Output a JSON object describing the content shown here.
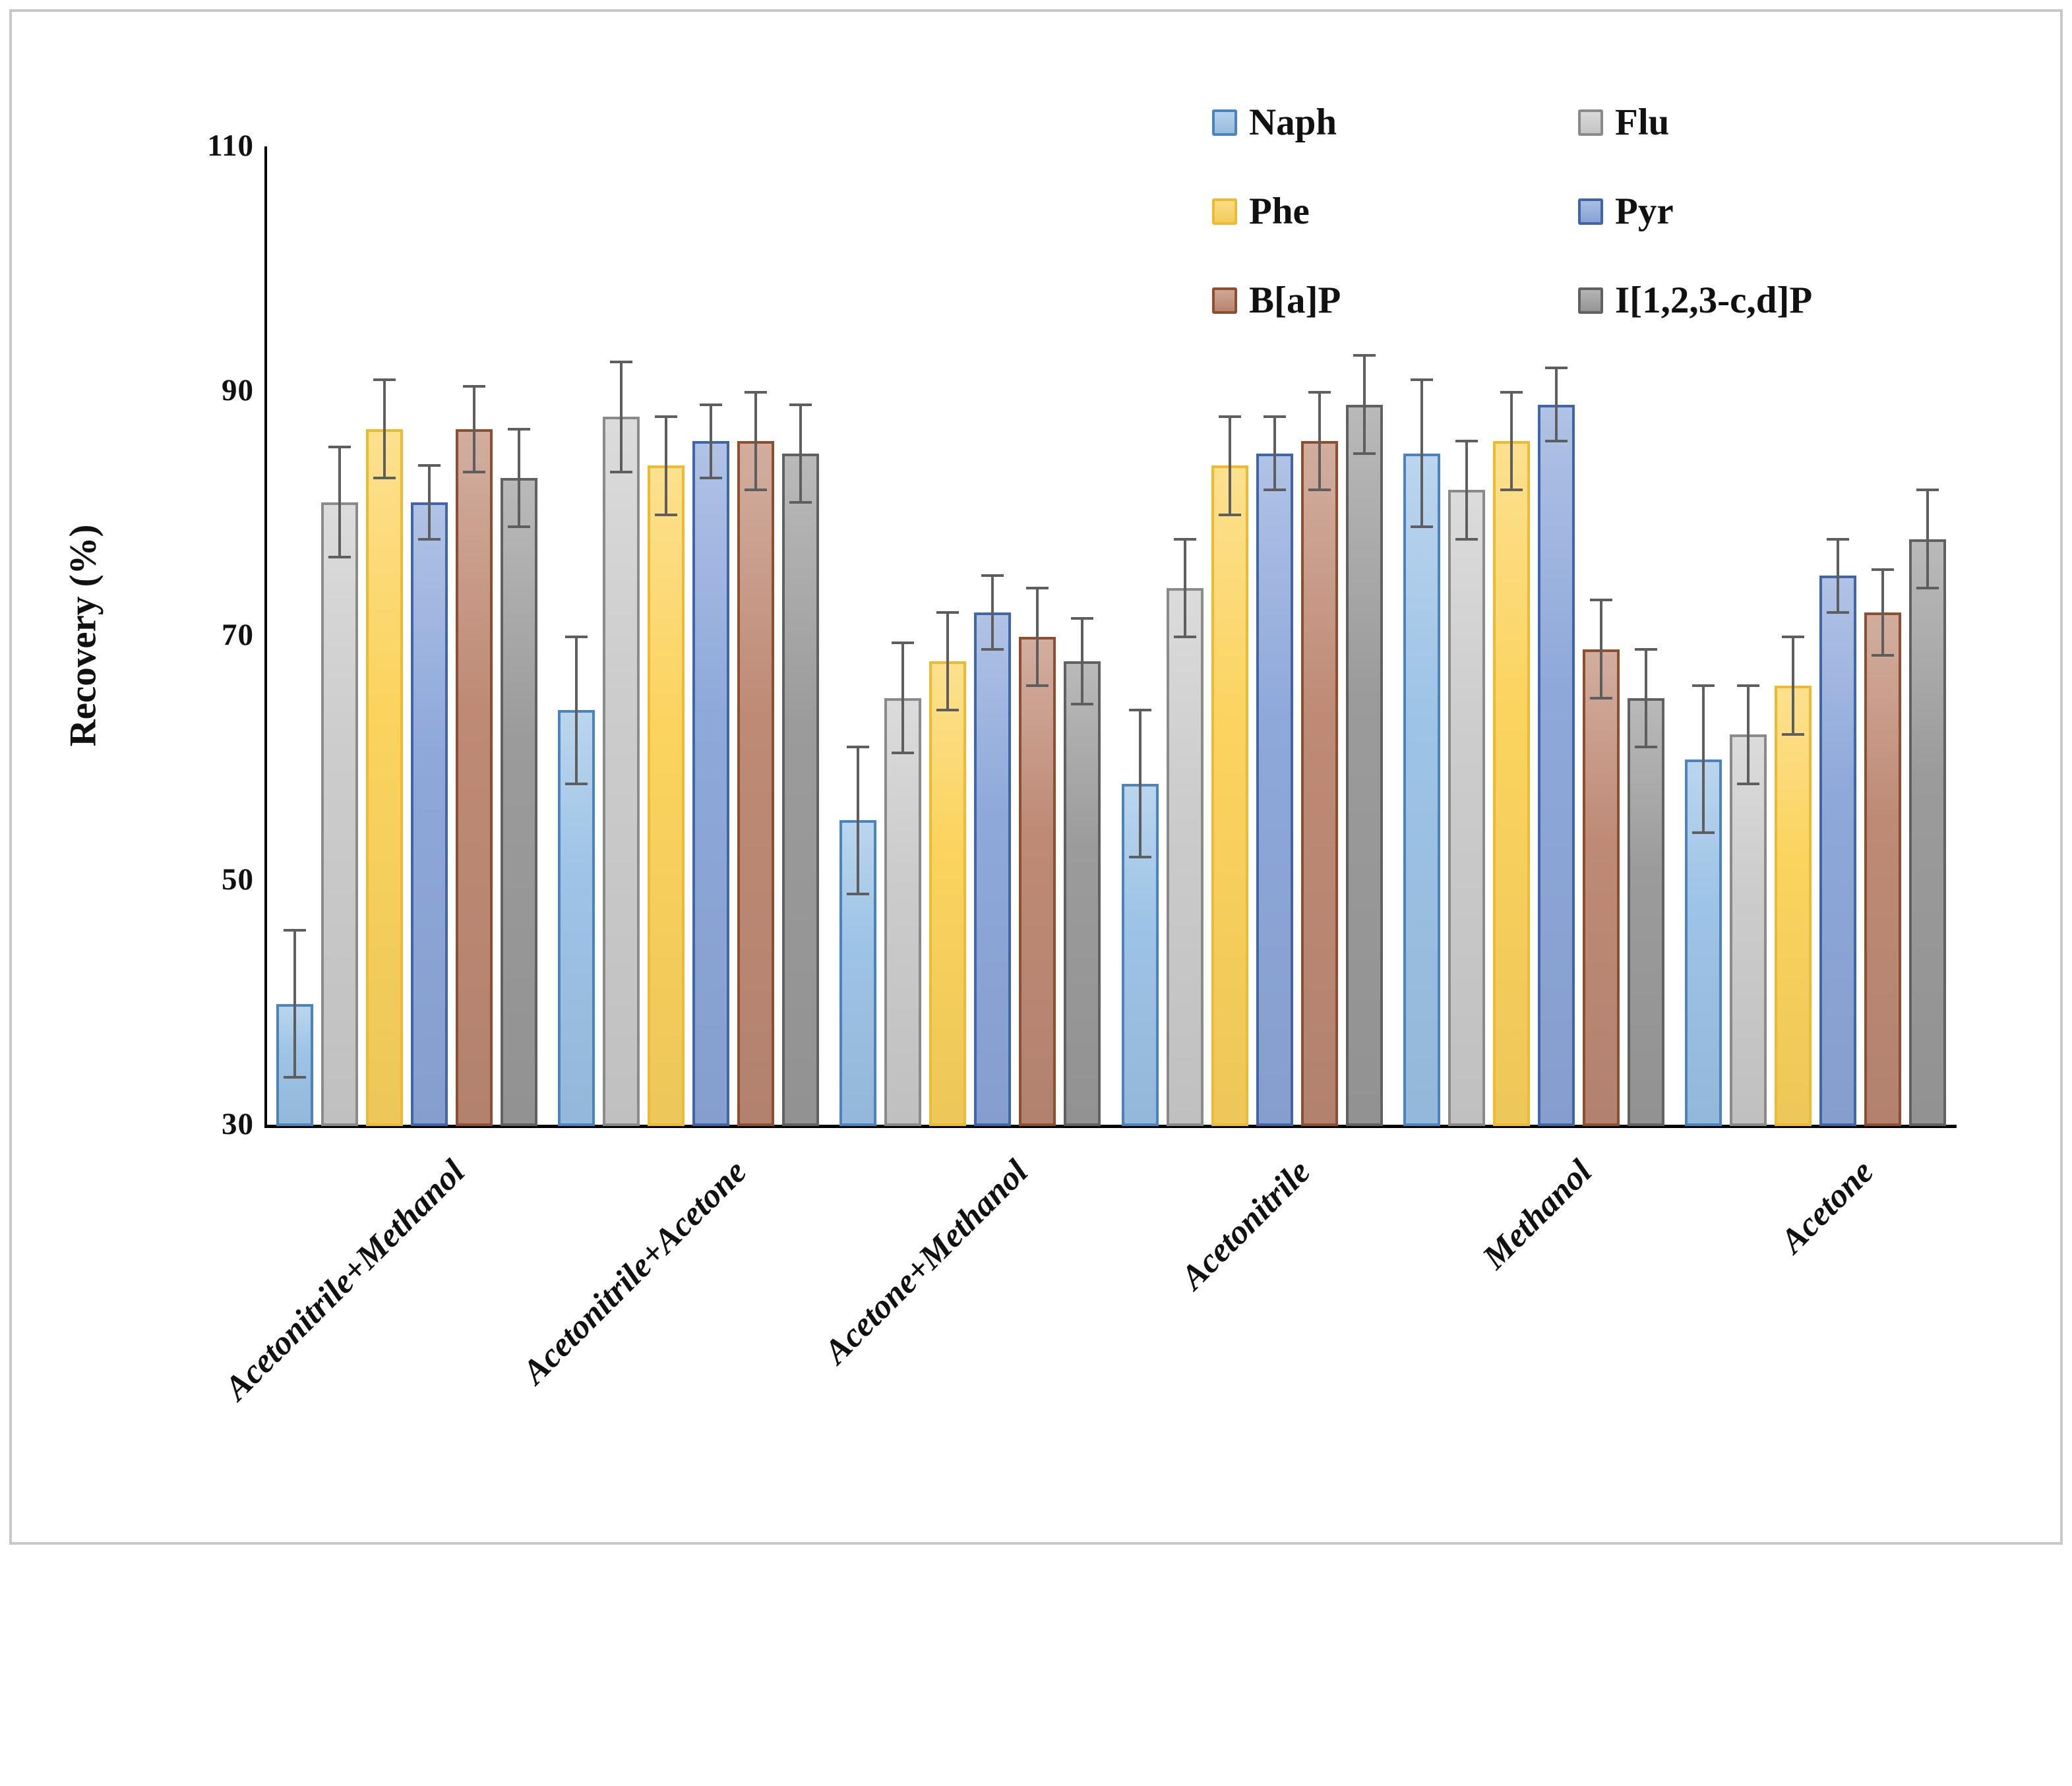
{
  "chart_data": {
    "type": "bar",
    "title": "",
    "xlabel": "",
    "ylabel": "Recovery (%)",
    "ylim": [
      30,
      110
    ],
    "yticks": [
      110,
      90,
      70,
      50,
      30
    ],
    "grid": false,
    "legend_position": "top-right",
    "categories": [
      "Acetonitrile+Methanol",
      "Acetonitrile+Acetone",
      "Acetone+Methanol",
      "Acetonitrile",
      "Methanol",
      "Acetone"
    ],
    "series": [
      {
        "name": "Naph",
        "fill": "#9DC3E6",
        "border": "#4B83BF",
        "values": [
          40,
          64,
          55,
          58,
          85,
          60
        ],
        "errors": [
          6,
          6,
          6,
          6,
          6,
          6
        ]
      },
      {
        "name": "Flu",
        "fill": "#CCCCCC",
        "border": "#8A8A8A",
        "values": [
          81,
          88,
          65,
          74,
          82,
          62
        ],
        "errors": [
          4.5,
          4.5,
          4.5,
          4,
          4,
          4
        ]
      },
      {
        "name": "Phe",
        "fill": "#FBD35E",
        "border": "#EDBA31",
        "values": [
          87,
          84,
          68,
          84,
          86,
          66
        ],
        "errors": [
          4,
          4,
          4,
          4,
          4,
          4
        ]
      },
      {
        "name": "Pyr",
        "fill": "#8EA8DA",
        "border": "#3E66A9",
        "values": [
          81,
          86,
          72,
          85,
          89,
          75
        ],
        "errors": [
          3,
          3,
          3,
          3,
          3,
          3
        ]
      },
      {
        "name": "B[a]P",
        "fill": "#BE8A75",
        "border": "#8F4F2E",
        "values": [
          87,
          86,
          70,
          86,
          69,
          72
        ],
        "errors": [
          3.5,
          4,
          4,
          4,
          4,
          3.5
        ]
      },
      {
        "name": "I[1,2,3-c,d]P",
        "fill": "#9B9B9B",
        "border": "#616161",
        "values": [
          83,
          85,
          68,
          89,
          65,
          78
        ],
        "errors": [
          4,
          4,
          3.5,
          4,
          4,
          4
        ]
      }
    ],
    "error_bar_color": "#5e5e5e"
  }
}
